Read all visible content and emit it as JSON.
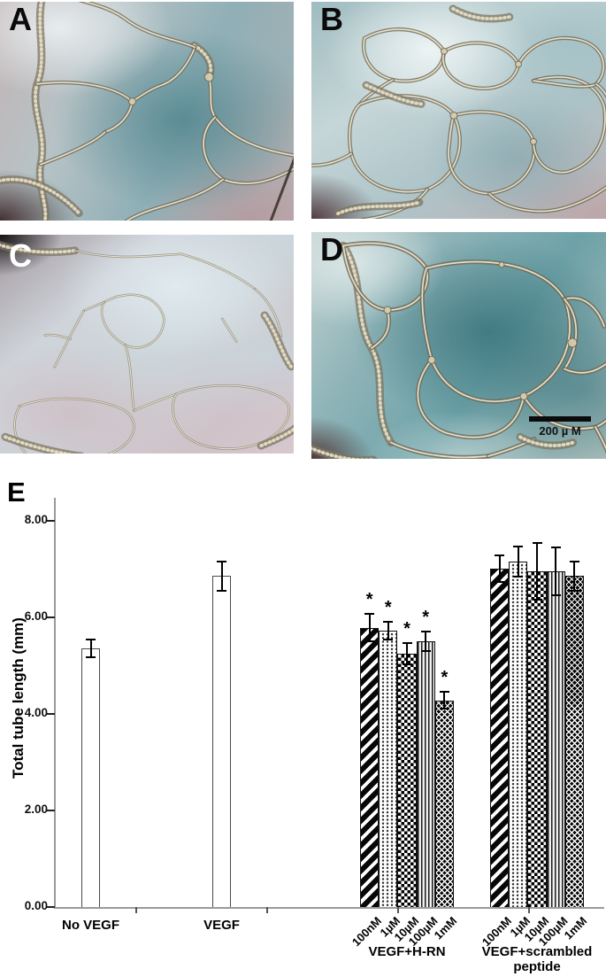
{
  "figure": {
    "panel_labels": [
      "A",
      "B",
      "C",
      "D"
    ],
    "chart_label": "E",
    "scale_bar_text": "200 µ M"
  },
  "chart_data": {
    "type": "bar",
    "title": "",
    "ylabel": "Total tube length (mm)",
    "ylim": [
      0,
      8.5
    ],
    "grid": false,
    "legend": "none",
    "sig_marker": "*",
    "yticks": [
      {
        "value": 0,
        "label": "0.00"
      },
      {
        "value": 2,
        "label": "2.00"
      },
      {
        "value": 4,
        "label": "4.00"
      },
      {
        "value": 6,
        "label": "6.00"
      },
      {
        "value": 8,
        "label": "8.00"
      }
    ],
    "groups": [
      {
        "label": "No VEGF",
        "label_lines": [
          "No VEGF"
        ],
        "bars": [
          {
            "label": "No VEGF",
            "value": 5.35,
            "error": 0.18,
            "pattern": "plain",
            "significant": false
          }
        ]
      },
      {
        "label": "VEGF",
        "label_lines": [
          "VEGF"
        ],
        "bars": [
          {
            "label": "VEGF",
            "value": 6.85,
            "error": 0.3,
            "pattern": "plain",
            "significant": false
          }
        ]
      },
      {
        "label": "VEGF+H-RN",
        "label_lines": [
          "VEGF+H-RN"
        ],
        "bars": [
          {
            "label": "100nM",
            "value": 5.78,
            "error": 0.28,
            "pattern": "diagonal",
            "significant": true
          },
          {
            "label": "1µM",
            "value": 5.72,
            "error": 0.18,
            "pattern": "dotted",
            "significant": true
          },
          {
            "label": "10µM",
            "value": 5.25,
            "error": 0.22,
            "pattern": "checker",
            "significant": true
          },
          {
            "label": "100µM",
            "value": 5.5,
            "error": 0.2,
            "pattern": "vstripe",
            "significant": true
          },
          {
            "label": "1mM",
            "value": 4.28,
            "error": 0.17,
            "pattern": "diamond",
            "significant": true
          }
        ]
      },
      {
        "label": "VEGF+scrambled peptide",
        "label_lines": [
          "VEGF+scrambled",
          "peptide"
        ],
        "bars": [
          {
            "label": "100nM",
            "value": 7.0,
            "error": 0.27,
            "pattern": "diagonal",
            "significant": false
          },
          {
            "label": "1µM",
            "value": 7.15,
            "error": 0.32,
            "pattern": "dotted",
            "significant": false
          },
          {
            "label": "10µM",
            "value": 6.95,
            "error": 0.58,
            "pattern": "checker",
            "significant": false
          },
          {
            "label": "100µM",
            "value": 6.95,
            "error": 0.5,
            "pattern": "vstripe",
            "significant": false
          },
          {
            "label": "1mM",
            "value": 6.85,
            "error": 0.3,
            "pattern": "diamond",
            "significant": false
          }
        ]
      }
    ]
  }
}
